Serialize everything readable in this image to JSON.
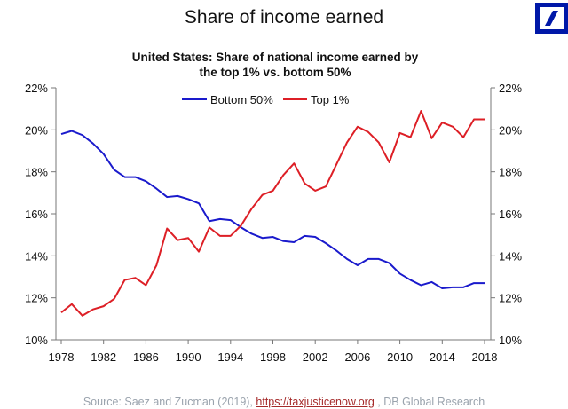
{
  "header": {
    "title": "Share of income earned"
  },
  "source": {
    "prefix": "Source: Saez and Zucman (2019),",
    "link": "https://taxjusticenow.org",
    "suffix": ", DB Global Research"
  },
  "chart_data": {
    "type": "line",
    "title": "United States: Share of national income earned by",
    "title_line2": "the top 1% vs. bottom 50%",
    "xlabel": "",
    "ylabel": "",
    "ylim": [
      10,
      22
    ],
    "xlim": [
      1978,
      2018
    ],
    "yticks": [
      "10%",
      "12%",
      "14%",
      "16%",
      "18%",
      "20%",
      "22%"
    ],
    "ytick_values": [
      10,
      12,
      14,
      16,
      18,
      20,
      22
    ],
    "xticks": [
      "1978",
      "1982",
      "1986",
      "1990",
      "1994",
      "1998",
      "2002",
      "2006",
      "2010",
      "2014",
      "2018"
    ],
    "legend_position": "top-center",
    "x": [
      1978,
      1979,
      1980,
      1981,
      1982,
      1983,
      1984,
      1985,
      1986,
      1987,
      1988,
      1989,
      1990,
      1991,
      1992,
      1993,
      1994,
      1995,
      1996,
      1997,
      1998,
      1999,
      2000,
      2001,
      2002,
      2003,
      2004,
      2005,
      2006,
      2007,
      2008,
      2009,
      2010,
      2011,
      2012,
      2013,
      2014,
      2015,
      2016,
      2017,
      2018
    ],
    "series": [
      {
        "name": "Bottom 50%",
        "color": "#1a1acc",
        "values": [
          19.8,
          19.95,
          19.75,
          19.35,
          18.85,
          18.1,
          17.75,
          17.75,
          17.55,
          17.2,
          16.8,
          16.85,
          16.7,
          16.5,
          15.65,
          15.75,
          15.7,
          15.35,
          15.05,
          14.85,
          14.9,
          14.7,
          14.65,
          14.95,
          14.9,
          14.6,
          14.25,
          13.85,
          13.55,
          13.85,
          13.85,
          13.65,
          13.15,
          12.85,
          12.6,
          12.75,
          12.45,
          12.5,
          12.5,
          12.7,
          12.7
        ]
      },
      {
        "name": "Top 1%",
        "color": "#dd1f26",
        "values": [
          11.3,
          11.7,
          11.15,
          11.45,
          11.6,
          11.95,
          12.85,
          12.95,
          12.6,
          13.55,
          15.3,
          14.75,
          14.85,
          14.2,
          15.35,
          14.95,
          14.95,
          15.45,
          16.25,
          16.9,
          17.1,
          17.85,
          18.4,
          17.45,
          17.1,
          17.3,
          18.35,
          19.4,
          20.15,
          19.9,
          19.4,
          18.45,
          19.85,
          19.65,
          20.9,
          19.6,
          20.35,
          20.15,
          19.65,
          20.5,
          20.5
        ]
      }
    ]
  }
}
